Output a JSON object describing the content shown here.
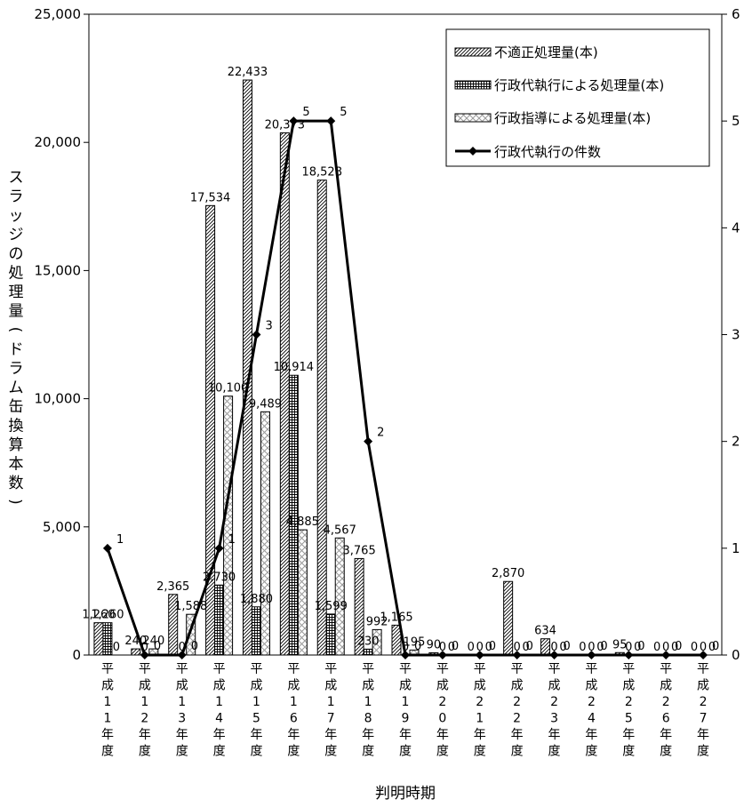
{
  "chart_data": {
    "type": "bar",
    "categories": [
      "平成11年度",
      "平成12年度",
      "平成13年度",
      "平成14年度",
      "平成15年度",
      "平成16年度",
      "平成17年度",
      "平成18年度",
      "平成19年度",
      "平成20年度",
      "平成21年度",
      "平成22年度",
      "平成23年度",
      "平成24年度",
      "平成25年度",
      "平成26年度",
      "平成27年度"
    ],
    "category_chars": [
      [
        "平",
        "成",
        "1",
        "1",
        "年",
        "度"
      ],
      [
        "平",
        "成",
        "1",
        "2",
        "年",
        "度"
      ],
      [
        "平",
        "成",
        "1",
        "3",
        "年",
        "度"
      ],
      [
        "平",
        "成",
        "1",
        "4",
        "年",
        "度"
      ],
      [
        "平",
        "成",
        "1",
        "5",
        "年",
        "度"
      ],
      [
        "平",
        "成",
        "1",
        "6",
        "年",
        "度"
      ],
      [
        "平",
        "成",
        "1",
        "7",
        "年",
        "度"
      ],
      [
        "平",
        "成",
        "1",
        "8",
        "年",
        "度"
      ],
      [
        "平",
        "成",
        "1",
        "9",
        "年",
        "度"
      ],
      [
        "平",
        "成",
        "2",
        "0",
        "年",
        "度"
      ],
      [
        "平",
        "成",
        "2",
        "1",
        "年",
        "度"
      ],
      [
        "平",
        "成",
        "2",
        "2",
        "年",
        "度"
      ],
      [
        "平",
        "成",
        "2",
        "3",
        "年",
        "度"
      ],
      [
        "平",
        "成",
        "2",
        "4",
        "年",
        "度"
      ],
      [
        "平",
        "成",
        "2",
        "5",
        "年",
        "度"
      ],
      [
        "平",
        "成",
        "2",
        "6",
        "年",
        "度"
      ],
      [
        "平",
        "成",
        "2",
        "7",
        "年",
        "度"
      ]
    ],
    "series": [
      {
        "name": "不適正処理量(本)",
        "values": [
          1260,
          240,
          2365,
          17534,
          22433,
          20373,
          18528,
          3765,
          1165,
          90,
          0,
          2870,
          634,
          0,
          95,
          0,
          0
        ],
        "labels": [
          "1,260",
          "240",
          "2,365",
          "17,534",
          "22,433",
          "20,373",
          "18,528",
          "3,765",
          "1,165",
          "90",
          "0",
          "2,870",
          "634",
          "0",
          "95",
          "0",
          "0"
        ]
      },
      {
        "name": "行政代執行による処理量(本)",
        "values": [
          1260,
          0,
          0,
          2730,
          1880,
          10914,
          1599,
          230,
          0,
          0,
          0,
          0,
          0,
          0,
          0,
          0,
          0
        ],
        "labels": [
          "1,260",
          "0",
          "0",
          "2,730",
          "1,880",
          "10,914",
          "1,599",
          "230",
          "0",
          "0",
          "0",
          "0",
          "0",
          "0",
          "0",
          "0",
          "0"
        ]
      },
      {
        "name": "行政指導による処理量(本)",
        "values": [
          0,
          240,
          1588,
          10100,
          9489,
          4885,
          4567,
          992,
          195,
          0,
          0,
          0,
          0,
          0,
          0,
          0,
          0
        ],
        "labels": [
          "0",
          "240",
          "1,588",
          "10,100",
          "9,489",
          "4,885",
          "4,567",
          "992",
          "195",
          "0",
          "0",
          "0",
          "0",
          "0",
          "0",
          "0",
          "0"
        ]
      },
      {
        "name": "行政代執行の件数",
        "type": "line",
        "axis": "right",
        "values": [
          1,
          0,
          0,
          1,
          3,
          5,
          5,
          2,
          0,
          0,
          0,
          0,
          0,
          0,
          0,
          0,
          0
        ],
        "labels": [
          "1",
          "0",
          "0",
          "1",
          "3",
          "5",
          "5",
          "2",
          "0",
          "0",
          "0",
          "0",
          "0",
          "0",
          "0",
          "0",
          "0"
        ]
      }
    ],
    "ylabel_chars": [
      "ス",
      "ラ",
      "ッ",
      "ジ",
      "の",
      "処",
      "理",
      "量",
      "(",
      "ド",
      "ラ",
      "ム",
      "缶",
      "換",
      "算",
      "本",
      "数",
      ")"
    ],
    "xlabel": "判明時期",
    "ylim": [
      0,
      25000
    ],
    "y_ticks": [
      0,
      5000,
      10000,
      15000,
      20000,
      25000
    ],
    "y_tick_labels": [
      "0",
      "5,000",
      "10,000",
      "15,000",
      "20,000",
      "25,000"
    ],
    "y2lim": [
      0,
      6
    ],
    "y2_ticks": [
      0,
      1,
      2,
      3,
      4,
      5,
      6
    ],
    "y2_tick_labels": [
      "0",
      "1",
      "2",
      "3",
      "4",
      "5",
      "6"
    ],
    "legend_position": "top-right",
    "grid": false
  }
}
